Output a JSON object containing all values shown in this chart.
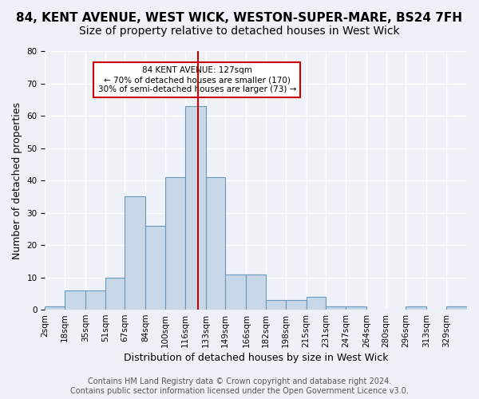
{
  "title": "84, KENT AVENUE, WEST WICK, WESTON-SUPER-MARE, BS24 7FH",
  "subtitle": "Size of property relative to detached houses in West Wick",
  "xlabel": "Distribution of detached houses by size in West Wick",
  "ylabel": "Number of detached properties",
  "bin_edges": [
    2,
    18,
    35,
    51,
    67,
    84,
    100,
    116,
    133,
    149,
    166,
    182,
    198,
    215,
    231,
    247,
    264,
    280,
    296,
    313,
    329,
    346
  ],
  "bin_counts": [
    1,
    6,
    6,
    10,
    35,
    26,
    41,
    63,
    41,
    11,
    11,
    3,
    3,
    4,
    1,
    1,
    0,
    0,
    1,
    0,
    1
  ],
  "bar_color": "#c8d8e8",
  "bar_edge_color": "#6699bb",
  "property_size": 127,
  "red_line_color": "#cc0000",
  "annotation_text": "84 KENT AVENUE: 127sqm\n← 70% of detached houses are smaller (170)\n30% of semi-detached houses are larger (73) →",
  "annotation_box_color": "#ffffff",
  "annotation_box_edge_color": "#cc0000",
  "ylim": [
    0,
    80
  ],
  "yticks": [
    0,
    10,
    20,
    30,
    40,
    50,
    60,
    70,
    80
  ],
  "xtick_positions": [
    2,
    18,
    35,
    51,
    67,
    84,
    100,
    116,
    133,
    149,
    166,
    182,
    198,
    215,
    231,
    247,
    264,
    280,
    296,
    313,
    329
  ],
  "tick_labels": [
    "2sqm",
    "18sqm",
    "35sqm",
    "51sqm",
    "67sqm",
    "84sqm",
    "100sqm",
    "116sqm",
    "133sqm",
    "149sqm",
    "166sqm",
    "182sqm",
    "198sqm",
    "215sqm",
    "231sqm",
    "247sqm",
    "264sqm",
    "280sqm",
    "296sqm",
    "313sqm",
    "329sqm"
  ],
  "footer_text": "Contains HM Land Registry data © Crown copyright and database right 2024.\nContains public sector information licensed under the Open Government Licence v3.0.",
  "bg_color": "#eef2f8",
  "grid_color": "#ffffff",
  "title_fontsize": 11,
  "subtitle_fontsize": 10,
  "label_fontsize": 9,
  "tick_fontsize": 7.5,
  "footer_fontsize": 7
}
